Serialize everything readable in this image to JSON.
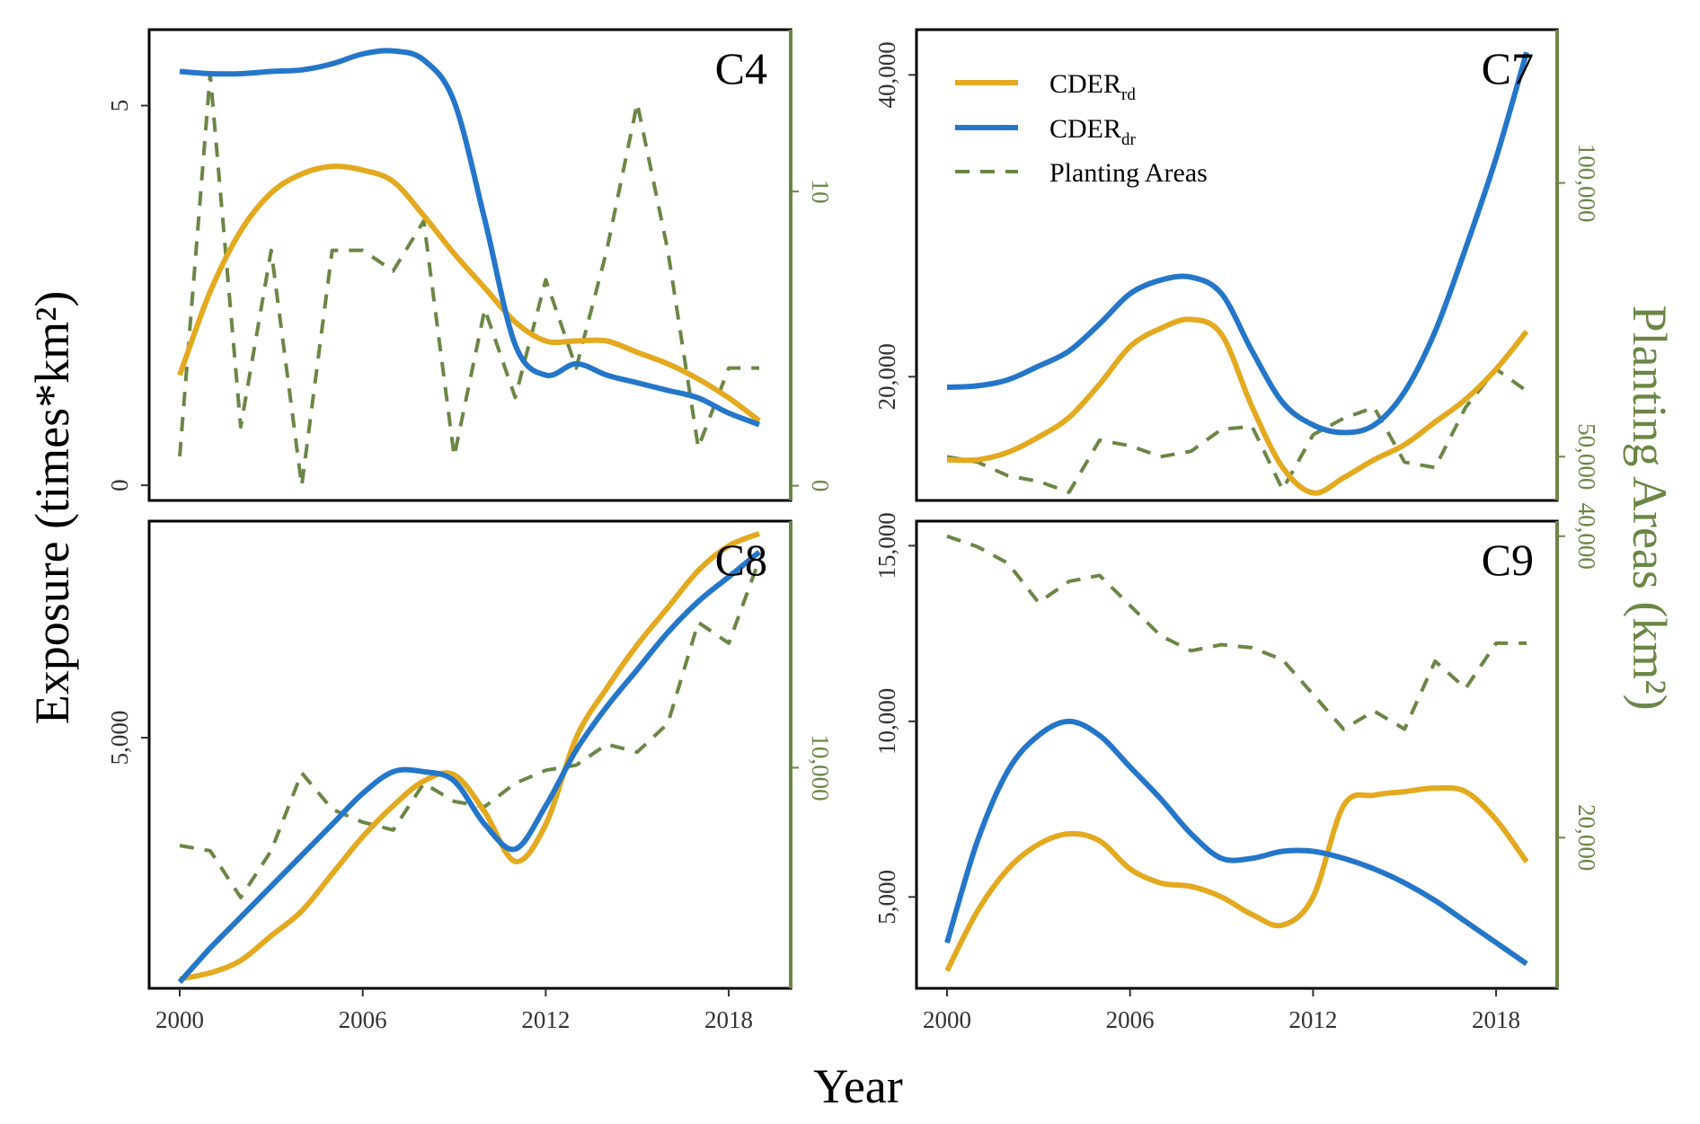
{
  "figure": {
    "ylabel": "Exposure (times*km²)",
    "xlabel": "Year",
    "y2label": "Planting Areas (km²)",
    "colors": {
      "rd": "#E3A91F",
      "dr": "#2476C9",
      "area": "#6B8645",
      "frame": "#000000",
      "sec_axis": "#6B8645"
    }
  },
  "legend": {
    "rd": {
      "base": "CDER",
      "sub": "rd"
    },
    "dr": {
      "base": "CDER",
      "sub": "dr"
    },
    "area": {
      "label": "Planting Areas"
    }
  },
  "chart_data": [
    {
      "type": "line",
      "panel": "C4",
      "x_ticks": [
        "2000",
        "2006",
        "2012",
        "2018"
      ],
      "xlim": [
        1999,
        2020
      ],
      "ylim": [
        -0.2,
        6.0
      ],
      "y_ticks": [
        {
          "v": 0,
          "label": "0"
        },
        {
          "v": 5,
          "label": "5"
        }
      ],
      "y2lim": [
        -0.5,
        15.5
      ],
      "y2_ticks": [
        {
          "v": 0,
          "label": "0"
        },
        {
          "v": 10,
          "label": "10"
        }
      ],
      "series": [
        {
          "key": "rd",
          "x": [
            2000,
            2001,
            2002,
            2003,
            2004,
            2005,
            2006,
            2007,
            2008,
            2009,
            2010,
            2011,
            2012,
            2013,
            2014,
            2015,
            2016,
            2017,
            2018,
            2019
          ],
          "y": [
            1.45,
            2.55,
            3.35,
            3.85,
            4.1,
            4.2,
            4.15,
            4.0,
            3.55,
            3.05,
            2.6,
            2.15,
            1.9,
            1.9,
            1.9,
            1.75,
            1.6,
            1.4,
            1.15,
            0.85
          ]
        },
        {
          "key": "dr",
          "x": [
            2000,
            2001,
            2002,
            2003,
            2004,
            2005,
            2006,
            2007,
            2008,
            2009,
            2010,
            2011,
            2012,
            2013,
            2014,
            2015,
            2016,
            2017,
            2018,
            2019
          ],
          "y": [
            5.45,
            5.42,
            5.42,
            5.45,
            5.47,
            5.55,
            5.68,
            5.72,
            5.6,
            5.05,
            3.5,
            1.85,
            1.45,
            1.6,
            1.45,
            1.35,
            1.25,
            1.15,
            0.95,
            0.8
          ]
        },
        {
          "key": "area",
          "axis": "y2",
          "x": [
            2000,
            2001,
            2002,
            2003,
            2004,
            2005,
            2006,
            2007,
            2008,
            2009,
            2010,
            2011,
            2012,
            2013,
            2014,
            2015,
            2016,
            2017,
            2018,
            2019
          ],
          "y": [
            1,
            14,
            2,
            8,
            0,
            8,
            8,
            7.3,
            9,
            1,
            6,
            3,
            7,
            4,
            8,
            13,
            8,
            1.3,
            4,
            4
          ]
        }
      ]
    },
    {
      "type": "line",
      "panel": "C7",
      "x_ticks": [
        "2000",
        "2006",
        "2012",
        "2018"
      ],
      "xlim": [
        1999,
        2020
      ],
      "ylim": [
        11800,
        43000
      ],
      "y_ticks": [
        {
          "v": 20000,
          "label": "20,000"
        },
        {
          "v": 40000,
          "label": "40,000"
        }
      ],
      "y2lim": [
        42000,
        128000
      ],
      "y2_ticks": [
        {
          "v": 50000,
          "label": "50,000"
        },
        {
          "v": 100000,
          "label": "100,000"
        }
      ],
      "series": [
        {
          "key": "rd",
          "x": [
            2000,
            2001,
            2002,
            2003,
            2004,
            2005,
            2006,
            2007,
            2008,
            2009,
            2010,
            2011,
            2012,
            2013,
            2014,
            2015,
            2016,
            2017,
            2018,
            2019
          ],
          "y": [
            14500,
            14500,
            15000,
            16000,
            17300,
            19500,
            22000,
            23200,
            23800,
            22800,
            18000,
            14000,
            12300,
            13300,
            14500,
            15500,
            17000,
            18500,
            20500,
            23000
          ]
        },
        {
          "key": "dr",
          "x": [
            2000,
            2001,
            2002,
            2003,
            2004,
            2005,
            2006,
            2007,
            2008,
            2009,
            2010,
            2011,
            2012,
            2013,
            2014,
            2015,
            2016,
            2017,
            2018,
            2019
          ],
          "y": [
            19300,
            19400,
            19800,
            20700,
            21700,
            23500,
            25500,
            26400,
            26600,
            25500,
            21700,
            18300,
            16800,
            16300,
            16800,
            19000,
            23000,
            28500,
            34500,
            41500
          ]
        },
        {
          "key": "area",
          "axis": "y2",
          "x": [
            2000,
            2001,
            2002,
            2003,
            2004,
            2005,
            2006,
            2007,
            2008,
            2009,
            2010,
            2011,
            2012,
            2013,
            2014,
            2015,
            2016,
            2017,
            2018,
            2019
          ],
          "y": [
            50000,
            49000,
            46500,
            45500,
            43500,
            53000,
            52000,
            50000,
            51000,
            55000,
            55500,
            44000,
            54000,
            57000,
            59000,
            49000,
            48000,
            59000,
            66000,
            62000
          ]
        }
      ]
    },
    {
      "type": "line",
      "panel": "C8",
      "x_ticks": [
        "2000",
        "2006",
        "2012",
        "2018"
      ],
      "xlim": [
        1999,
        2020
      ],
      "ylim": [
        950,
        8500
      ],
      "y_ticks": [
        {
          "v": 5000,
          "label": "5,000"
        }
      ],
      "y2lim": [
        1500,
        19500
      ],
      "y2_ticks": [
        {
          "v": 10000,
          "label": "10,000"
        }
      ],
      "series": [
        {
          "key": "rd",
          "x": [
            2000,
            2001,
            2002,
            2003,
            2004,
            2005,
            2006,
            2007,
            2008,
            2009,
            2010,
            2011,
            2012,
            2013,
            2014,
            2015,
            2016,
            2017,
            2018,
            2019
          ],
          "y": [
            1100,
            1200,
            1400,
            1800,
            2200,
            2800,
            3400,
            3900,
            4300,
            4400,
            3800,
            3000,
            3600,
            5000,
            5800,
            6500,
            7100,
            7700,
            8100,
            8300
          ]
        },
        {
          "key": "dr",
          "x": [
            2000,
            2001,
            2002,
            2003,
            2004,
            2005,
            2006,
            2007,
            2008,
            2009,
            2010,
            2011,
            2012,
            2013,
            2014,
            2015,
            2016,
            2017,
            2018,
            2019
          ],
          "y": [
            1050,
            1600,
            2100,
            2600,
            3100,
            3600,
            4100,
            4450,
            4450,
            4300,
            3600,
            3200,
            3900,
            4800,
            5500,
            6100,
            6700,
            7200,
            7600,
            8000
          ]
        },
        {
          "key": "area",
          "axis": "y2",
          "x": [
            2000,
            2001,
            2002,
            2003,
            2004,
            2005,
            2006,
            2007,
            2008,
            2009,
            2010,
            2011,
            2012,
            2013,
            2014,
            2015,
            2016,
            2017,
            2018,
            2019
          ],
          "y": [
            7000,
            6800,
            5000,
            6800,
            9800,
            8400,
            7900,
            7600,
            9400,
            8700,
            8500,
            9400,
            9900,
            10100,
            10900,
            10600,
            11700,
            15600,
            14800,
            18000
          ]
        }
      ]
    },
    {
      "type": "line",
      "panel": "C9",
      "x_ticks": [
        "2000",
        "2006",
        "2012",
        "2018"
      ],
      "xlim": [
        1999,
        2020
      ],
      "ylim": [
        2400,
        15700
      ],
      "y_ticks": [
        {
          "v": 5000,
          "label": "5,000"
        },
        {
          "v": 10000,
          "label": "10,000"
        },
        {
          "v": 15000,
          "label": "15,000"
        }
      ],
      "y2lim": [
        10000,
        41000
      ],
      "y2_ticks": [
        {
          "v": 20000,
          "label": "20,000"
        },
        {
          "v": 40000,
          "label": "40,000"
        }
      ],
      "series": [
        {
          "key": "rd",
          "x": [
            2000,
            2001,
            2002,
            2003,
            2004,
            2005,
            2006,
            2007,
            2008,
            2009,
            2010,
            2011,
            2012,
            2013,
            2014,
            2015,
            2016,
            2017,
            2018,
            2019
          ],
          "y": [
            2900,
            4600,
            5800,
            6500,
            6800,
            6600,
            5800,
            5400,
            5300,
            5000,
            4500,
            4200,
            5000,
            7600,
            7900,
            8000,
            8100,
            8000,
            7200,
            6000
          ]
        },
        {
          "key": "dr",
          "x": [
            2000,
            2001,
            2002,
            2003,
            2004,
            2005,
            2006,
            2007,
            2008,
            2009,
            2010,
            2011,
            2012,
            2013,
            2014,
            2015,
            2016,
            2017,
            2018,
            2019
          ],
          "y": [
            3700,
            6600,
            8600,
            9600,
            10000,
            9600,
            8700,
            7800,
            6800,
            6100,
            6100,
            6300,
            6300,
            6100,
            5800,
            5400,
            4900,
            4300,
            3700,
            3100
          ]
        },
        {
          "key": "area",
          "axis": "y2",
          "x": [
            2000,
            2001,
            2002,
            2003,
            2004,
            2005,
            2006,
            2007,
            2008,
            2009,
            2010,
            2011,
            2012,
            2013,
            2014,
            2015,
            2016,
            2017,
            2018,
            2019
          ],
          "y": [
            40000,
            39300,
            38200,
            35600,
            37000,
            37400,
            35400,
            33400,
            32400,
            32800,
            32600,
            31800,
            29500,
            27200,
            28400,
            27200,
            31700,
            29900,
            32900,
            32900
          ]
        }
      ]
    }
  ]
}
